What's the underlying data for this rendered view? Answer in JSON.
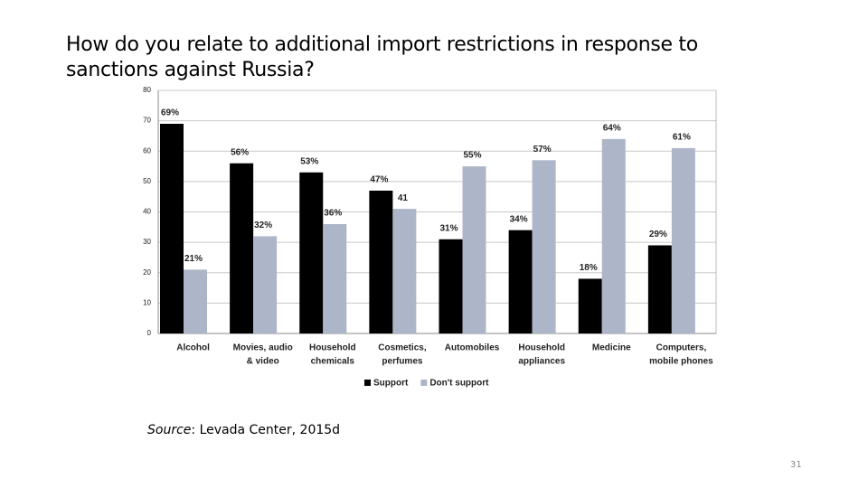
{
  "title": "How do you relate to additional import restrictions in response to sanctions against Russia?",
  "chart_data": {
    "type": "bar",
    "categories": [
      [
        "Alcohol"
      ],
      [
        "Movies, audio",
        "& video"
      ],
      [
        "Household",
        "chemicals"
      ],
      [
        "Cosmetics,",
        "perfumes"
      ],
      [
        "Automobiles"
      ],
      [
        "Household",
        "appliances"
      ],
      [
        "Medicine"
      ],
      [
        "Computers,",
        "mobile phones"
      ]
    ],
    "series": [
      {
        "name": "Support",
        "color": "#000000",
        "values": [
          69,
          56,
          53,
          47,
          31,
          34,
          18,
          29
        ],
        "value_labels": [
          "69%",
          "56%",
          "53%",
          "47%",
          "31%",
          "34%",
          "18%",
          "29%"
        ]
      },
      {
        "name": "Don't support",
        "color": "#adb6c8",
        "values": [
          21,
          32,
          36,
          41,
          55,
          57,
          64,
          61
        ],
        "value_labels": [
          "21%",
          "32%",
          "36%",
          "41",
          "55%",
          "57%",
          "64%",
          "61%"
        ]
      }
    ],
    "ylim": [
      0,
      80
    ],
    "yticks": [
      0,
      10,
      20,
      30,
      40,
      50,
      60,
      70,
      80
    ],
    "grid": true,
    "legend": "bottom"
  },
  "source": {
    "label": "Source",
    "text": ": Levada Center, 2015d"
  },
  "page_number": "31"
}
